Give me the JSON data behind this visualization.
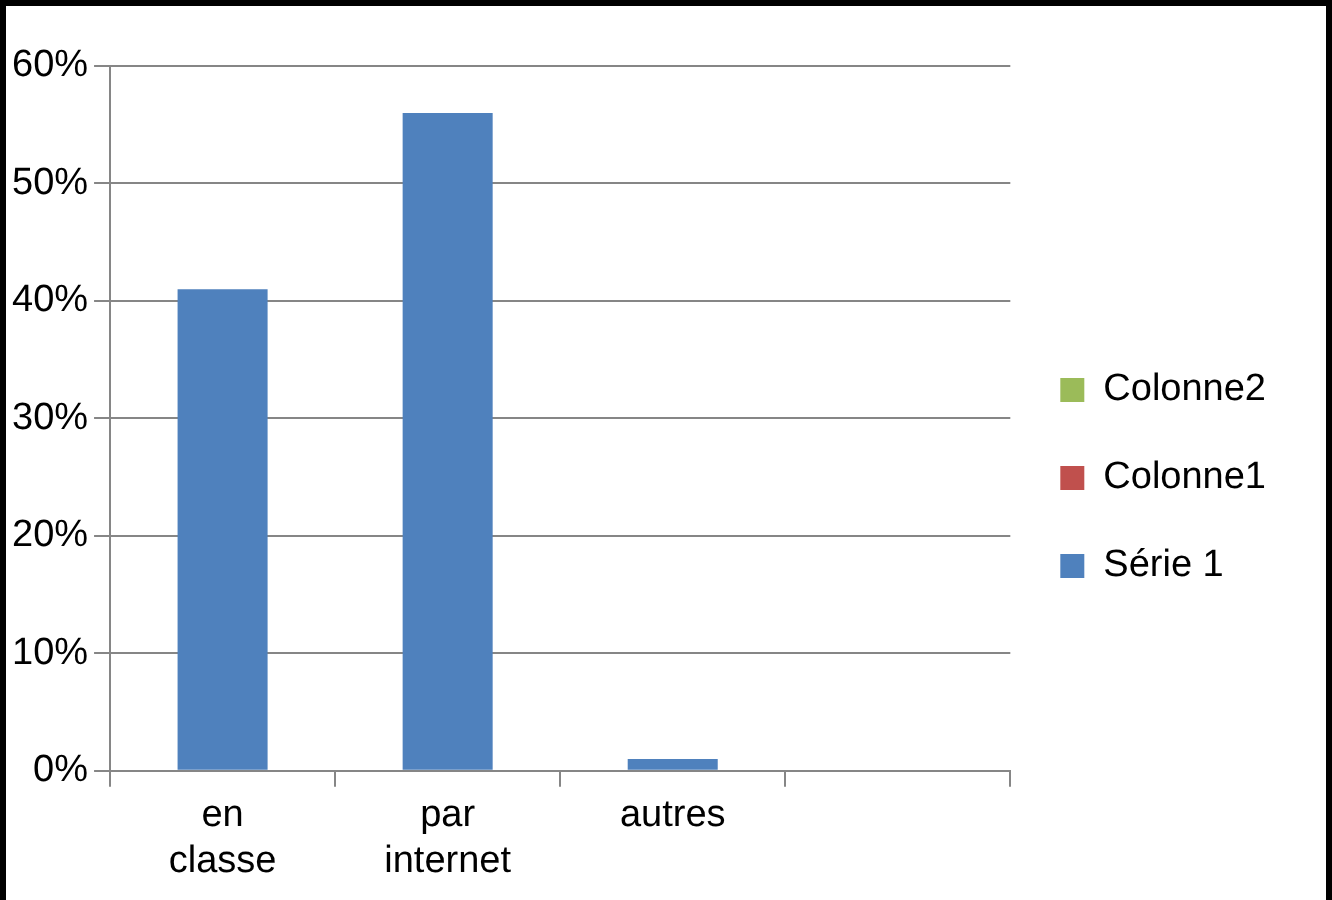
{
  "chart_data": {
    "type": "bar",
    "categories": [
      "en classe",
      "par internet",
      "autres",
      null
    ],
    "series": [
      {
        "name": "Série 1",
        "color": "#4f81bd",
        "values": [
          41,
          56,
          1,
          null
        ]
      },
      {
        "name": "Colonne1",
        "color": "#c0504d",
        "values": [
          null,
          null,
          null,
          null
        ]
      },
      {
        "name": "Colonne2",
        "color": "#9bbb59",
        "values": [
          null,
          null,
          null,
          null
        ]
      }
    ],
    "ylim": [
      0,
      60
    ],
    "yticks": [
      {
        "value": 0,
        "label": "0%"
      },
      {
        "value": 10,
        "label": "10%"
      },
      {
        "value": 20,
        "label": "20%"
      },
      {
        "value": 30,
        "label": "30%"
      },
      {
        "value": 40,
        "label": "40%"
      },
      {
        "value": 50,
        "label": "50%"
      },
      {
        "value": 60,
        "label": "60%"
      }
    ],
    "grid": "y",
    "legend": "right"
  }
}
